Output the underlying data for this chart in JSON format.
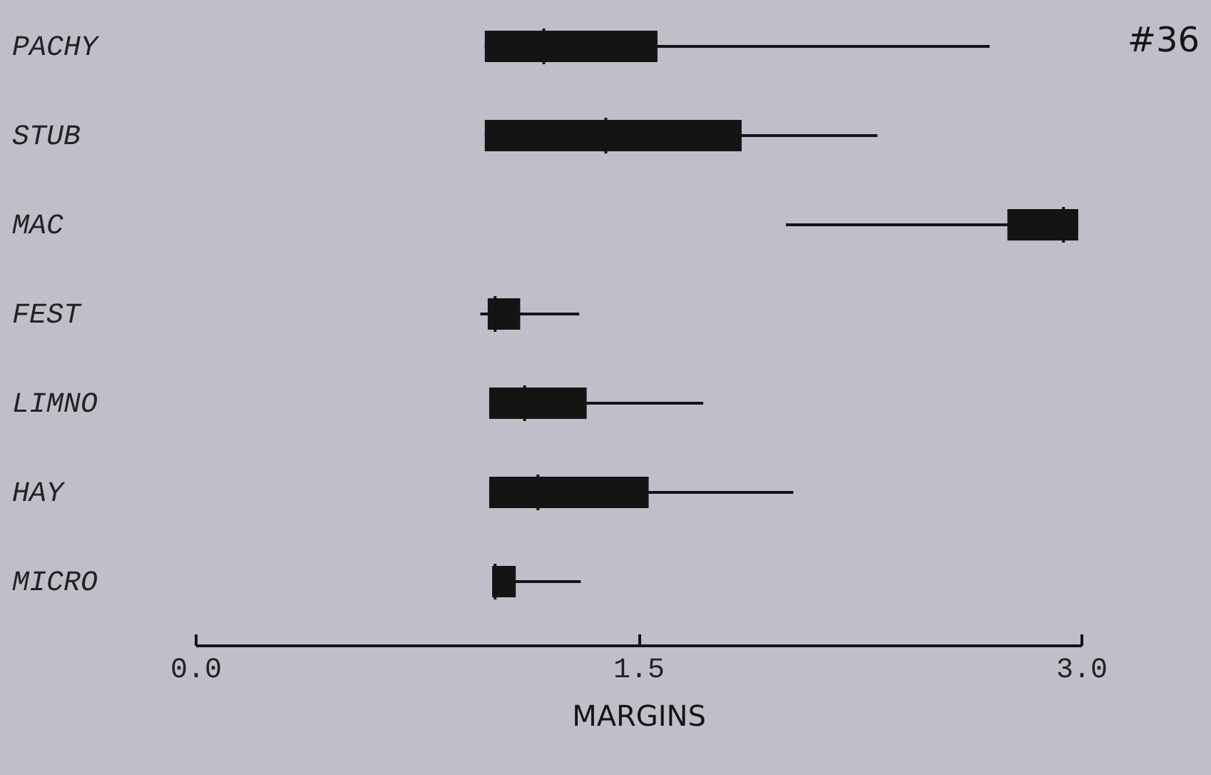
{
  "chart_data": {
    "type": "box",
    "orientation": "horizontal",
    "xlabel": "MARGINS",
    "annotations": [
      "#36"
    ],
    "categories": [
      "PACHY",
      "STUB",
      "MAC",
      "FEST",
      "LIMNO",
      "HAY",
      "MICRO"
    ],
    "xlim": [
      0,
      3
    ],
    "xticks": [
      {
        "value": 0,
        "label": "0.0"
      },
      {
        "value": 1.5,
        "label": "1.5"
      },
      {
        "value": 3,
        "label": "3.0"
      }
    ],
    "series": [
      {
        "color": "#141414",
        "boxes": [
          {
            "low": 0.98,
            "q1": 0.98,
            "median": 1.18,
            "q3": 1.565,
            "high": 2.69
          },
          {
            "low": 0.98,
            "q1": 0.98,
            "median": 1.39,
            "q3": 1.85,
            "high": 2.31
          },
          {
            "low": 2.0,
            "q1": 2.75,
            "median": 2.94,
            "q3": 2.99,
            "high": 2.99
          },
          {
            "low": 0.965,
            "q1": 0.99,
            "median": 1.015,
            "q3": 1.1,
            "high": 1.3
          },
          {
            "low": 0.995,
            "q1": 0.995,
            "median": 1.115,
            "q3": 1.325,
            "high": 1.72
          },
          {
            "low": 0.995,
            "q1": 0.995,
            "median": 1.16,
            "q3": 1.535,
            "high": 2.025
          },
          {
            "low": 1.005,
            "q1": 1.005,
            "median": 1.015,
            "q3": 1.085,
            "high": 1.305
          }
        ]
      }
    ]
  }
}
